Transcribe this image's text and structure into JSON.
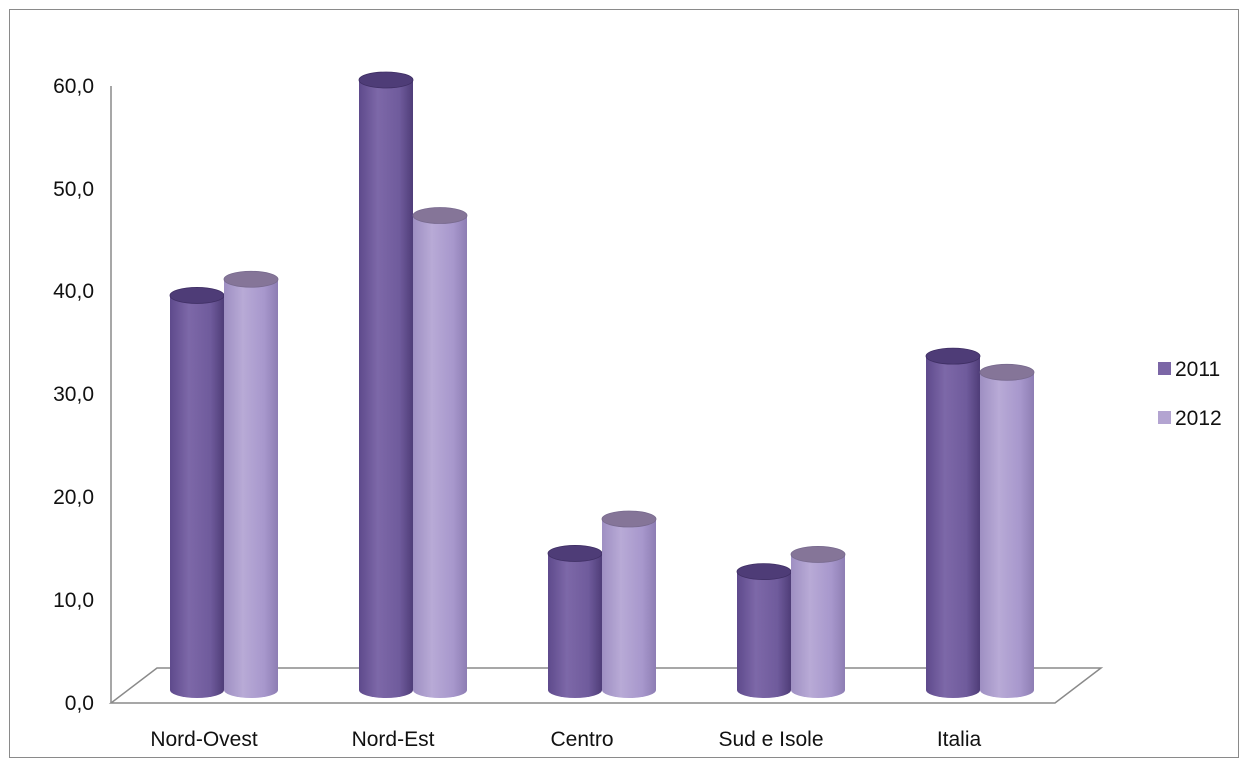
{
  "chart_data": {
    "type": "bar",
    "style": "3d-cylinder",
    "categories": [
      "Nord-Ovest",
      "Nord-Est",
      "Centro",
      "Sud e Isole",
      "Italia"
    ],
    "series": [
      {
        "name": "2011",
        "values": [
          39.0,
          60.3,
          13.5,
          11.7,
          33.0
        ],
        "color": "#7b66a6"
      },
      {
        "name": "2012",
        "values": [
          40.6,
          46.9,
          16.9,
          13.4,
          31.4
        ],
        "color": "#b3a4d1"
      }
    ],
    "y_ticks": [
      "0,0",
      "10,0",
      "20,0",
      "30,0",
      "40,0",
      "50,0",
      "60,0"
    ],
    "ylim": [
      0,
      60
    ],
    "grid": false,
    "legend": "right"
  }
}
